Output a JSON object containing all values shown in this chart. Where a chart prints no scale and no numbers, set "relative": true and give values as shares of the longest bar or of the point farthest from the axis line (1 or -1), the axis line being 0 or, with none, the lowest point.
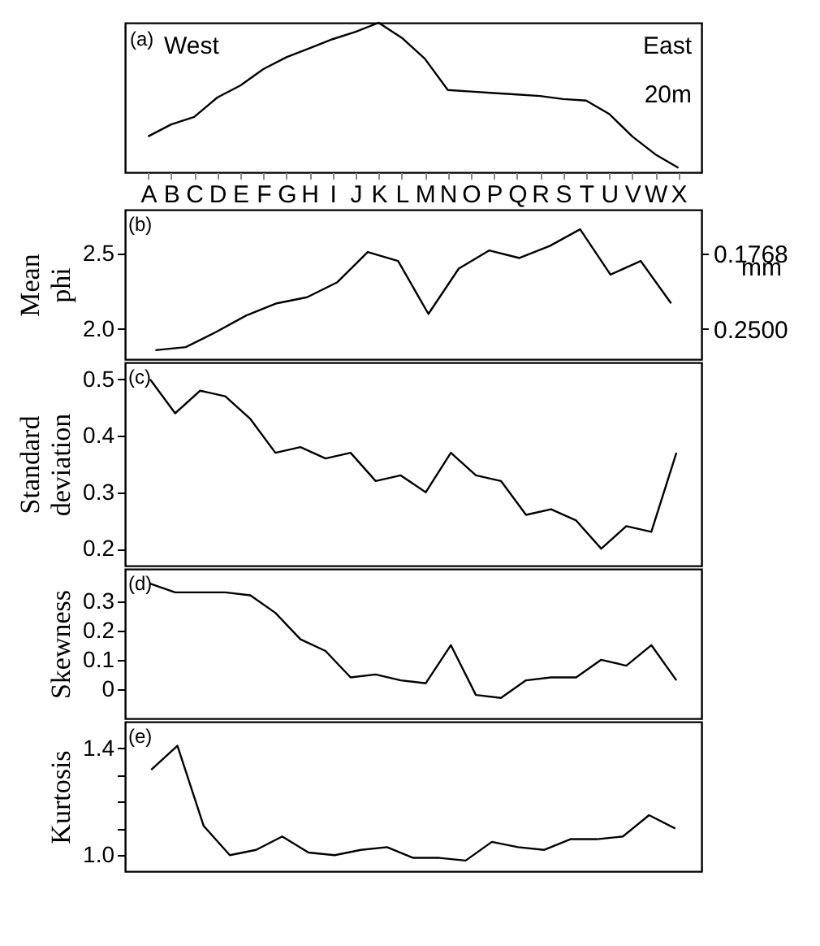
{
  "chart_data": [
    {
      "type": "line",
      "relative": true,
      "annotations": [
        "(a)",
        "West",
        "East",
        "20m"
      ],
      "categories": [
        "A",
        "B",
        "C",
        "D",
        "E",
        "F",
        "G",
        "H",
        "I",
        "J",
        "K",
        "L",
        "M",
        "N",
        "O",
        "P",
        "Q",
        "R",
        "S",
        "T",
        "U",
        "V",
        "W",
        "X"
      ],
      "values": [
        0.24,
        0.32,
        0.37,
        0.5,
        0.58,
        0.69,
        0.77,
        0.83,
        0.89,
        0.94,
        1,
        0.9,
        0.76,
        0.55,
        0.54,
        0.53,
        0.52,
        0.51,
        0.49,
        0.48,
        0.39,
        0.24,
        0.12,
        0.03
      ],
      "color": "#000000",
      "tick_labels": "x"
    },
    {
      "type": "line",
      "ylabel": "Mean phi",
      "y2label": "mm",
      "annotations": [
        "(b)"
      ],
      "categories": [
        null,
        null,
        null,
        null,
        null,
        null,
        null,
        null,
        null,
        null,
        null,
        null,
        null,
        null,
        null,
        null,
        null,
        null
      ],
      "values": [
        1.86,
        1.88,
        1.98,
        2.09,
        2.17,
        2.21,
        2.31,
        2.51,
        2.45,
        2.1,
        2.4,
        2.52,
        2.47,
        2.55,
        2.66,
        2.36,
        2.45,
        2.17
      ],
      "ylim": [
        1.8,
        2.79
      ],
      "yticks": [
        {
          "value": 2,
          "label": "2.0"
        },
        2.5
      ],
      "log": "y2",
      "y2lim": [
        0.2872,
        0.1445
      ],
      "y2ticks": [
        0.1768,
        {
          "value": 0.25,
          "label": "0.2500"
        }
      ],
      "color": "#000000",
      "tick_labels": "y"
    },
    {
      "type": "line",
      "ylabel": "Standard deviation",
      "annotations": [
        "(c)"
      ],
      "categories": [
        null,
        null,
        null,
        null,
        null,
        null,
        null,
        null,
        null,
        null,
        null,
        null,
        null,
        null,
        null,
        null,
        null,
        null,
        null,
        null,
        null,
        null
      ],
      "values": [
        0.5,
        0.44,
        0.48,
        0.47,
        0.43,
        0.37,
        0.38,
        0.36,
        0.37,
        0.32,
        0.33,
        0.3,
        0.37,
        0.33,
        0.32,
        0.26,
        0.27,
        0.25,
        0.2,
        0.24,
        0.23,
        0.37
      ],
      "ylim": [
        0.17,
        0.53
      ],
      "yticks": [
        0.2,
        0.3,
        0.4,
        0.5
      ],
      "color": "#000000",
      "tick_labels": "y"
    },
    {
      "type": "line",
      "ylabel": "Skewness",
      "annotations": [
        "(d)"
      ],
      "categories": [
        null,
        null,
        null,
        null,
        null,
        null,
        null,
        null,
        null,
        null,
        null,
        null,
        null,
        null,
        null,
        null,
        null,
        null,
        null,
        null,
        null,
        null
      ],
      "values": [
        0.36,
        0.33,
        0.33,
        0.33,
        0.32,
        0.26,
        0.17,
        0.13,
        0.04,
        0.05,
        0.03,
        0.02,
        0.15,
        -0.02,
        -0.03,
        0.03,
        0.04,
        0.04,
        0.1,
        0.08,
        0.15,
        0.03
      ],
      "ylim": [
        -0.1,
        0.41
      ],
      "yticks": [
        0,
        0.1,
        0.2,
        0.3
      ],
      "color": "#000000",
      "tick_labels": "y"
    },
    {
      "type": "line",
      "ylabel": "Kurtosis",
      "annotations": [
        "(e)"
      ],
      "categories": [
        null,
        null,
        null,
        null,
        null,
        null,
        null,
        null,
        null,
        null,
        null,
        null,
        null,
        null,
        null,
        null,
        null,
        null,
        null,
        null,
        null
      ],
      "values": [
        1.32,
        1.41,
        1.11,
        1.0,
        1.02,
        1.07,
        1.01,
        1.0,
        1.02,
        1.03,
        0.99,
        0.99,
        0.98,
        1.05,
        1.03,
        1.02,
        1.06,
        1.06,
        1.07,
        1.15,
        1.1
      ],
      "ylim": [
        0.94,
        1.5
      ],
      "yticks": [
        {
          "value": 1,
          "label": "1.0"
        },
        {
          "value": 1.1,
          "label": null
        },
        {
          "value": 1.2,
          "label": null
        },
        {
          "value": 1.3,
          "label": null
        },
        1.4
      ],
      "color": "#000000",
      "tick_labels": "y"
    }
  ]
}
